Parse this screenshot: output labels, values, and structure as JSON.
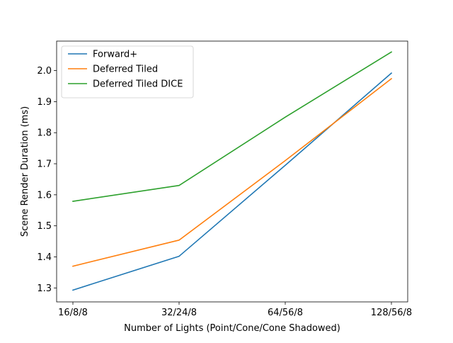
{
  "chart_data": {
    "type": "line",
    "title": "",
    "xlabel": "Number of Lights (Point/Cone/Cone Shadowed)",
    "ylabel": "Scene Render Duration (ms)",
    "categories": [
      "16/8/8",
      "32/24/8",
      "64/56/8",
      "128/56/8"
    ],
    "ylim": [
      1.255,
      2.095
    ],
    "yticks": [
      "1.3",
      "1.4",
      "1.5",
      "1.6",
      "1.7",
      "1.8",
      "1.9",
      "2.0"
    ],
    "grid": false,
    "legend_position": "top-left",
    "series": [
      {
        "name": "Forward+",
        "color": "#1f77b4",
        "values": [
          1.293,
          1.402,
          1.695,
          1.992
        ]
      },
      {
        "name": "Deferred Tiled",
        "color": "#ff7f0e",
        "values": [
          1.37,
          1.454,
          1.71,
          1.974
        ]
      },
      {
        "name": "Deferred Tiled DICE",
        "color": "#2ca02c",
        "values": [
          1.579,
          1.63,
          1.85,
          2.06
        ]
      }
    ]
  }
}
